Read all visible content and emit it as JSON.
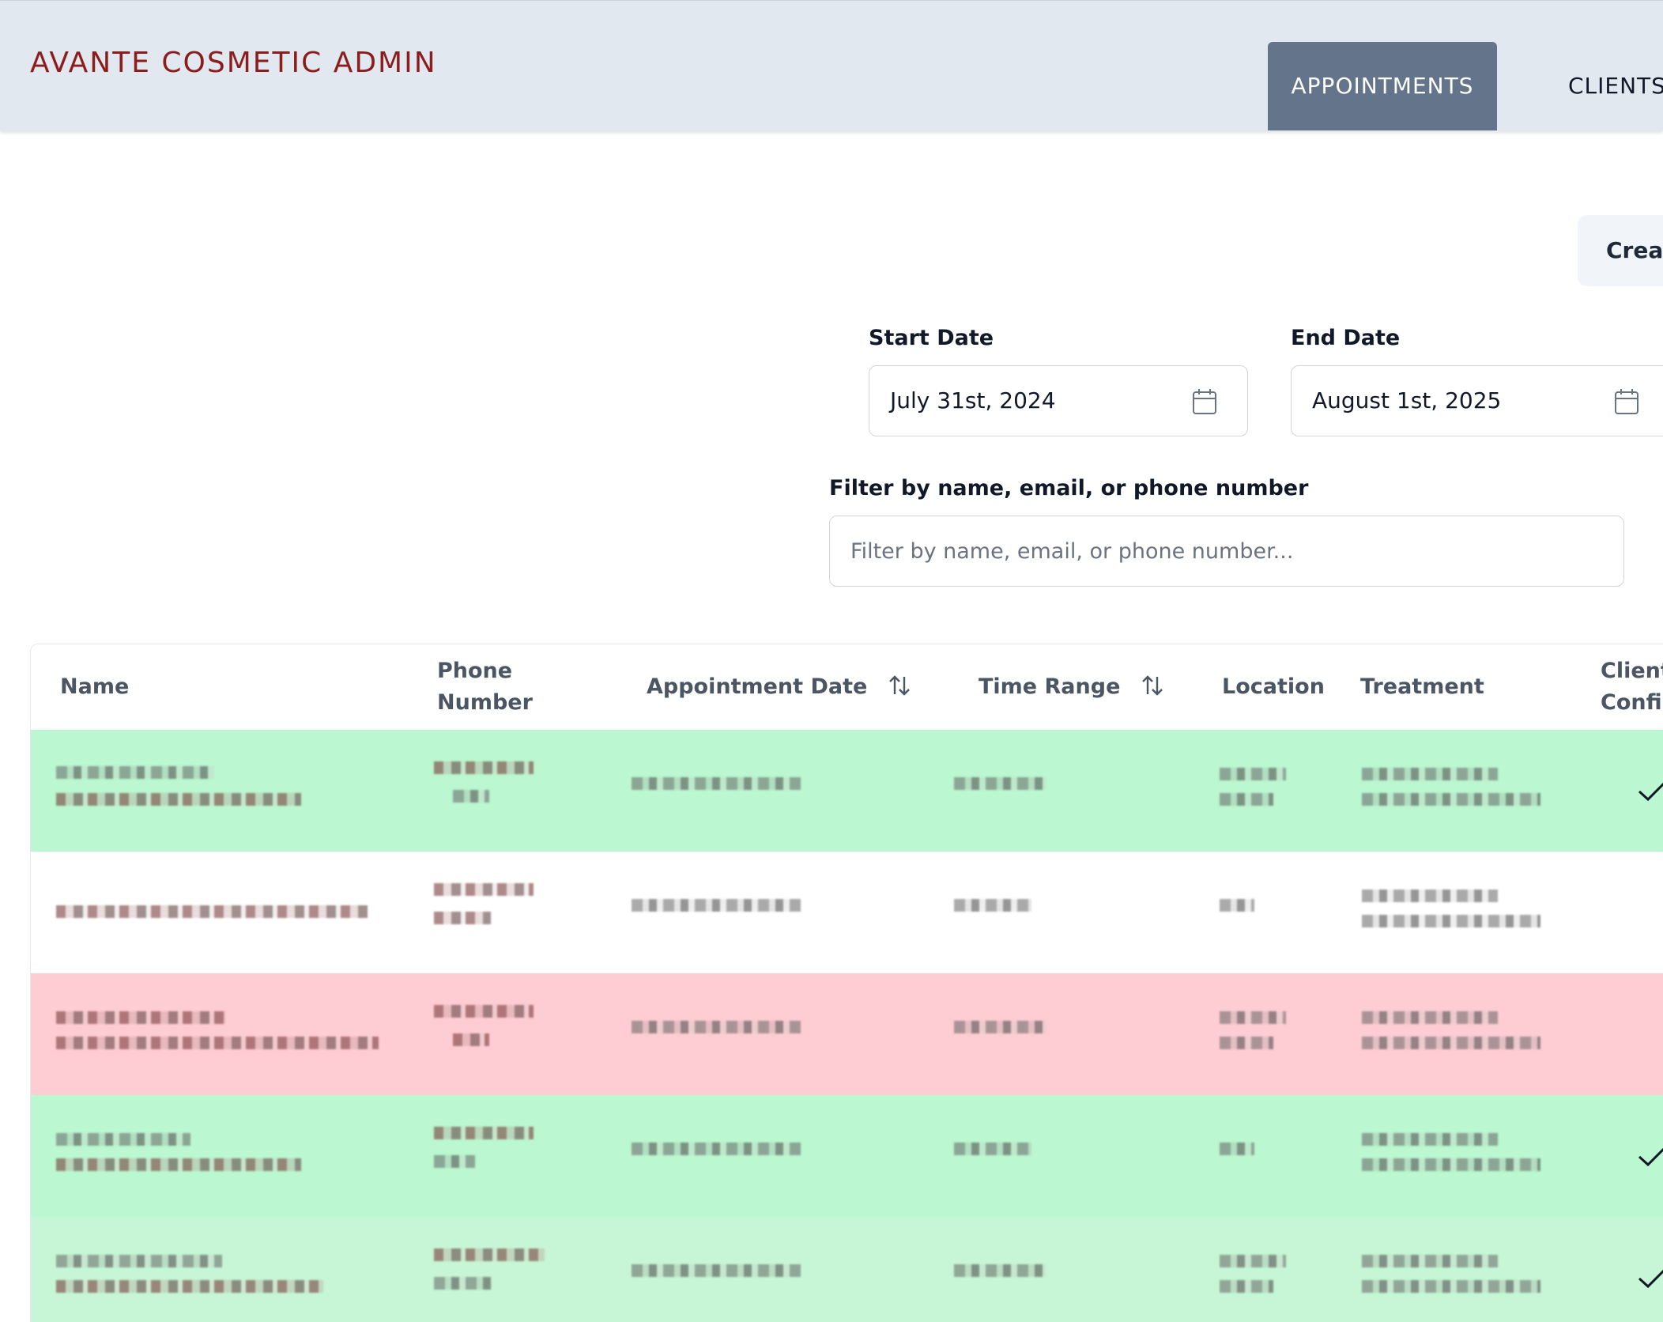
{
  "header": {
    "brand": "AVANTE COSMETIC ADMIN",
    "tabs": [
      {
        "label": "APPOINTMENTS",
        "active": true
      },
      {
        "label": "CLIENTS",
        "active": false
      }
    ],
    "colors": {
      "brand": "#8b1d1d",
      "bar": "#e2e8f0",
      "active_tab": "#64748b"
    }
  },
  "toolbar": {
    "create_label": "Create"
  },
  "filters": {
    "start_date": {
      "label": "Start Date",
      "value": "July 31st, 2024",
      "icon": "calendar-icon"
    },
    "end_date": {
      "label": "End Date",
      "value": "August 1st, 2025",
      "icon": "calendar-icon"
    },
    "search": {
      "label": "Filter by name, email, or phone number",
      "placeholder": "Filter by name, email, or phone number..."
    }
  },
  "table": {
    "columns": {
      "name": "Name",
      "phone": "Phone\nNumber",
      "appointment_date": "Appointment Date",
      "time_range": "Time Range",
      "location": "Location",
      "treatment": "Treatment",
      "client_confirmed": "Client\nConfir"
    },
    "rows": [
      {
        "status": "confirmed",
        "client_confirmed": true,
        "color": "#bbf7d0"
      },
      {
        "status": "plain",
        "client_confirmed": false,
        "color": "#ffffff"
      },
      {
        "status": "cancelled",
        "client_confirmed": false,
        "color": "#fecdd3"
      },
      {
        "status": "confirmed",
        "client_confirmed": true,
        "color": "#bbf7d0"
      },
      {
        "status": "confirmed",
        "client_confirmed": true,
        "color": "#c6f6d5"
      }
    ]
  }
}
